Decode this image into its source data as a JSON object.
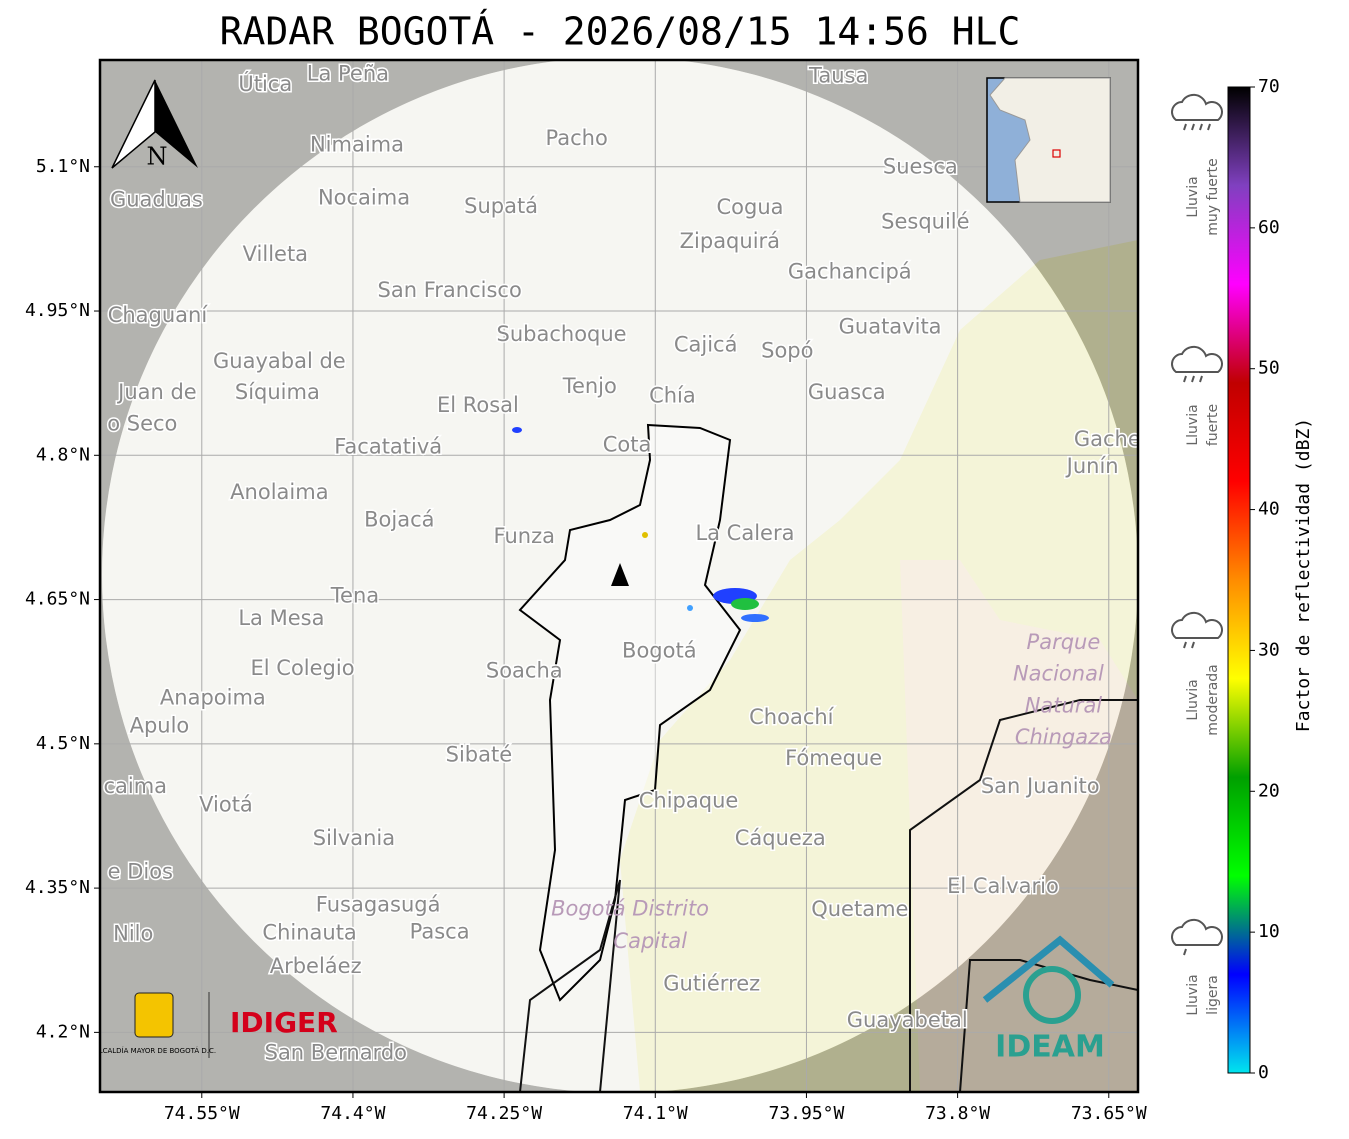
{
  "map": {
    "title": "RADAR BOGOTÁ - 2026/08/15 14:56 HLC",
    "xlim": [
      -74.651,
      -73.621
    ],
    "ylim": [
      4.138,
      5.211
    ],
    "xticks": [
      {
        "value": -74.55,
        "label": "74.55°W"
      },
      {
        "value": -74.4,
        "label": "74.4°W"
      },
      {
        "value": -74.25,
        "label": "74.25°W"
      },
      {
        "value": -74.1,
        "label": "74.1°W"
      },
      {
        "value": -73.95,
        "label": "73.95°W"
      },
      {
        "value": -73.8,
        "label": "73.8°W"
      },
      {
        "value": -73.65,
        "label": "73.65°W"
      }
    ],
    "yticks": [
      {
        "value": 4.2,
        "label": "4.2°N"
      },
      {
        "value": 4.35,
        "label": "4.35°N"
      },
      {
        "value": 4.5,
        "label": "4.5°N"
      },
      {
        "value": 4.65,
        "label": "4.65°N"
      },
      {
        "value": 4.8,
        "label": "4.8°N"
      },
      {
        "value": 4.95,
        "label": "4.95°N"
      },
      {
        "value": 5.1,
        "label": "5.1°N"
      }
    ],
    "grid": true,
    "places": [
      {
        "name": "Útica",
        "lon": -74.487,
        "lat": 5.185
      },
      {
        "name": "La Peña",
        "lon": -74.405,
        "lat": 5.196
      },
      {
        "name": "Tausa",
        "lon": -73.918,
        "lat": 5.194
      },
      {
        "name": "Pacho",
        "lon": -74.178,
        "lat": 5.129
      },
      {
        "name": "Nimaima",
        "lon": -74.396,
        "lat": 5.122
      },
      {
        "name": "Guaduas",
        "lon": -74.595,
        "lat": 5.065
      },
      {
        "name": "Nocaima",
        "lon": -74.389,
        "lat": 5.067
      },
      {
        "name": "Supatá",
        "lon": -74.253,
        "lat": 5.058
      },
      {
        "name": "Cogua",
        "lon": -74.006,
        "lat": 5.057
      },
      {
        "name": "Suesca",
        "lon": -73.837,
        "lat": 5.099
      },
      {
        "name": "Sesquilé",
        "lon": -73.832,
        "lat": 5.042
      },
      {
        "name": "Zipaquirá",
        "lon": -74.026,
        "lat": 5.022
      },
      {
        "name": "Villeta",
        "lon": -74.477,
        "lat": 5.008
      },
      {
        "name": "Gachancipá",
        "lon": -73.907,
        "lat": 4.99
      },
      {
        "name": "San Francisco",
        "lon": -74.304,
        "lat": 4.971
      },
      {
        "name": "Chaguaní",
        "lon": -74.594,
        "lat": 4.945
      },
      {
        "name": "Guatavita",
        "lon": -73.867,
        "lat": 4.933
      },
      {
        "name": "Subachoque",
        "lon": -74.193,
        "lat": 4.925
      },
      {
        "name": "Cajicá",
        "lon": -74.05,
        "lat": 4.914
      },
      {
        "name": "Sopó",
        "lon": -73.969,
        "lat": 4.908
      },
      {
        "name": "Guayabal de",
        "lon": -74.473,
        "lat": 4.897
      },
      {
        "name": "Síquima",
        "lon": -74.475,
        "lat": 4.865
      },
      {
        "name": "Juan de",
        "lon": -74.594,
        "lat": 4.865
      },
      {
        "name": "o Seco",
        "lon": -74.609,
        "lat": 4.832
      },
      {
        "name": "Tenjo",
        "lon": -74.165,
        "lat": 4.871
      },
      {
        "name": "Chía",
        "lon": -74.083,
        "lat": 4.861
      },
      {
        "name": "El Rosal",
        "lon": -74.276,
        "lat": 4.851
      },
      {
        "name": "Guasca",
        "lon": -73.91,
        "lat": 4.865
      },
      {
        "name": "Facatativá",
        "lon": -74.365,
        "lat": 4.808
      },
      {
        "name": "Cota",
        "lon": -74.128,
        "lat": 4.81
      },
      {
        "name": "Gachetá",
        "lon": -73.641,
        "lat": 4.816
      },
      {
        "name": "Junín",
        "lon": -73.666,
        "lat": 4.788
      },
      {
        "name": "Anolaima",
        "lon": -74.473,
        "lat": 4.761
      },
      {
        "name": "Bojacá",
        "lon": -74.354,
        "lat": 4.732
      },
      {
        "name": "Funza",
        "lon": -74.23,
        "lat": 4.715
      },
      {
        "name": "La Calera",
        "lon": -74.011,
        "lat": 4.718
      },
      {
        "name": "Tena",
        "lon": -74.398,
        "lat": 4.653
      },
      {
        "name": "La Mesa",
        "lon": -74.471,
        "lat": 4.63
      },
      {
        "name": "Bogotá",
        "lon": -74.096,
        "lat": 4.596
      },
      {
        "name": "Soacha",
        "lon": -74.23,
        "lat": 4.575
      },
      {
        "name": "El Colegio",
        "lon": -74.45,
        "lat": 4.578
      },
      {
        "name": "Anapoima",
        "lon": -74.539,
        "lat": 4.547
      },
      {
        "name": "Apulo",
        "lon": -74.592,
        "lat": 4.518
      },
      {
        "name": "Choachí",
        "lon": -73.965,
        "lat": 4.527
      },
      {
        "name": "Fómeque",
        "lon": -73.923,
        "lat": 4.484
      },
      {
        "name": "Sibaté",
        "lon": -74.275,
        "lat": 4.488
      },
      {
        "name": "San Juanito",
        "lon": -73.718,
        "lat": 4.455
      },
      {
        "name": "caima",
        "lon": -74.616,
        "lat": 4.455
      },
      {
        "name": "Chipaque",
        "lon": -74.067,
        "lat": 4.44
      },
      {
        "name": "Viotá",
        "lon": -74.526,
        "lat": 4.436
      },
      {
        "name": "Silvania",
        "lon": -74.399,
        "lat": 4.401
      },
      {
        "name": "Cáqueza",
        "lon": -73.976,
        "lat": 4.401
      },
      {
        "name": "e Dios",
        "lon": -74.611,
        "lat": 4.366
      },
      {
        "name": "El Calvario",
        "lon": -73.755,
        "lat": 4.351
      },
      {
        "name": "Fusagasugá",
        "lon": -74.375,
        "lat": 4.332
      },
      {
        "name": "Quetame",
        "lon": -73.897,
        "lat": 4.327
      },
      {
        "name": "Chinauta",
        "lon": -74.443,
        "lat": 4.303
      },
      {
        "name": "Pasca",
        "lon": -74.314,
        "lat": 4.304
      },
      {
        "name": "Nilo",
        "lon": -74.618,
        "lat": 4.302
      },
      {
        "name": "Arbeláez",
        "lon": -74.437,
        "lat": 4.268
      },
      {
        "name": "Gutiérrez",
        "lon": -74.044,
        "lat": 4.25
      },
      {
        "name": "Guayabetal",
        "lon": -73.85,
        "lat": 4.212
      },
      {
        "name": "San Bernardo",
        "lon": -74.417,
        "lat": 4.178
      }
    ],
    "areas": [
      {
        "name": "Parque",
        "lon": -73.695,
        "lat": 4.605
      },
      {
        "name": "Nacional",
        "lon": -73.7,
        "lat": 4.572
      },
      {
        "name": "Natural",
        "lon": -73.695,
        "lat": 4.539
      },
      {
        "name": "Chingaza",
        "lon": -73.695,
        "lat": 4.506
      },
      {
        "name": "Bogotá Distrito",
        "lon": -74.125,
        "lat": 4.328
      },
      {
        "name": "Capital",
        "lon": -74.105,
        "lat": 4.294
      }
    ],
    "compass": "N",
    "logos": {
      "alcaldia": "ALCALDÍA MAYOR DE BOGOTÁ D.C.",
      "idiger": "IDIGER",
      "ideam": "IDEAM"
    },
    "colorbar": {
      "label": "Factor de reflectividad (dBZ)",
      "lim": [
        0,
        70
      ],
      "ticks": [
        0,
        10,
        20,
        30,
        40,
        50,
        60,
        70
      ],
      "colors": [
        "#00e5ee",
        "#0000ff",
        "#00ff00",
        "#00a000",
        "#ffff00",
        "#ff8c00",
        "#ff0000",
        "#c00000",
        "#ff00ff",
        "#8040c0",
        "#000000"
      ]
    },
    "rain_levels": [
      {
        "lines": [
          "Lluvia",
          "ligera"
        ]
      },
      {
        "lines": [
          "Lluvia",
          "moderada"
        ]
      },
      {
        "lines": [
          "Lluvia",
          "fuerte"
        ]
      },
      {
        "lines": [
          "Lluvia",
          "muy fuerte"
        ]
      }
    ]
  }
}
